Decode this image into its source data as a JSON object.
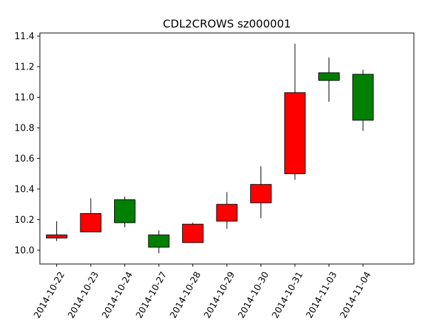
{
  "chart_data": {
    "type": "candlestick",
    "title": "CDL2CROWS sz000001",
    "xlabel": "",
    "ylabel": "",
    "ylim": [
      9.91,
      11.42
    ],
    "yticks": [
      10.0,
      10.2,
      10.4,
      10.6,
      10.8,
      11.0,
      11.2,
      11.4
    ],
    "ytick_labels": [
      "10.0",
      "10.2",
      "10.4",
      "10.6",
      "10.8",
      "11.0",
      "11.2",
      "11.4"
    ],
    "grid": false,
    "colors": {
      "up": "#ff0000",
      "down": "#008000",
      "edge": "#000000"
    },
    "candles": [
      {
        "date": "2014-10-22",
        "open": 10.08,
        "high": 10.19,
        "low": 10.06,
        "close": 10.1
      },
      {
        "date": "2014-10-23",
        "open": 10.12,
        "high": 10.34,
        "low": 10.12,
        "close": 10.24
      },
      {
        "date": "2014-10-24",
        "open": 10.33,
        "high": 10.35,
        "low": 10.15,
        "close": 10.18
      },
      {
        "date": "2014-10-27",
        "open": 10.1,
        "high": 10.13,
        "low": 9.98,
        "close": 10.02
      },
      {
        "date": "2014-10-28",
        "open": 10.05,
        "high": 10.18,
        "low": 10.05,
        "close": 10.17
      },
      {
        "date": "2014-10-29",
        "open": 10.19,
        "high": 10.38,
        "low": 10.14,
        "close": 10.3
      },
      {
        "date": "2014-10-30",
        "open": 10.31,
        "high": 10.55,
        "low": 10.21,
        "close": 10.43
      },
      {
        "date": "2014-10-31",
        "open": 10.5,
        "high": 11.35,
        "low": 10.46,
        "close": 11.03
      },
      {
        "date": "2014-11-03",
        "open": 11.16,
        "high": 11.26,
        "low": 10.97,
        "close": 11.11
      },
      {
        "date": "2014-11-04",
        "open": 11.15,
        "high": 11.18,
        "low": 10.78,
        "close": 10.85
      }
    ]
  }
}
